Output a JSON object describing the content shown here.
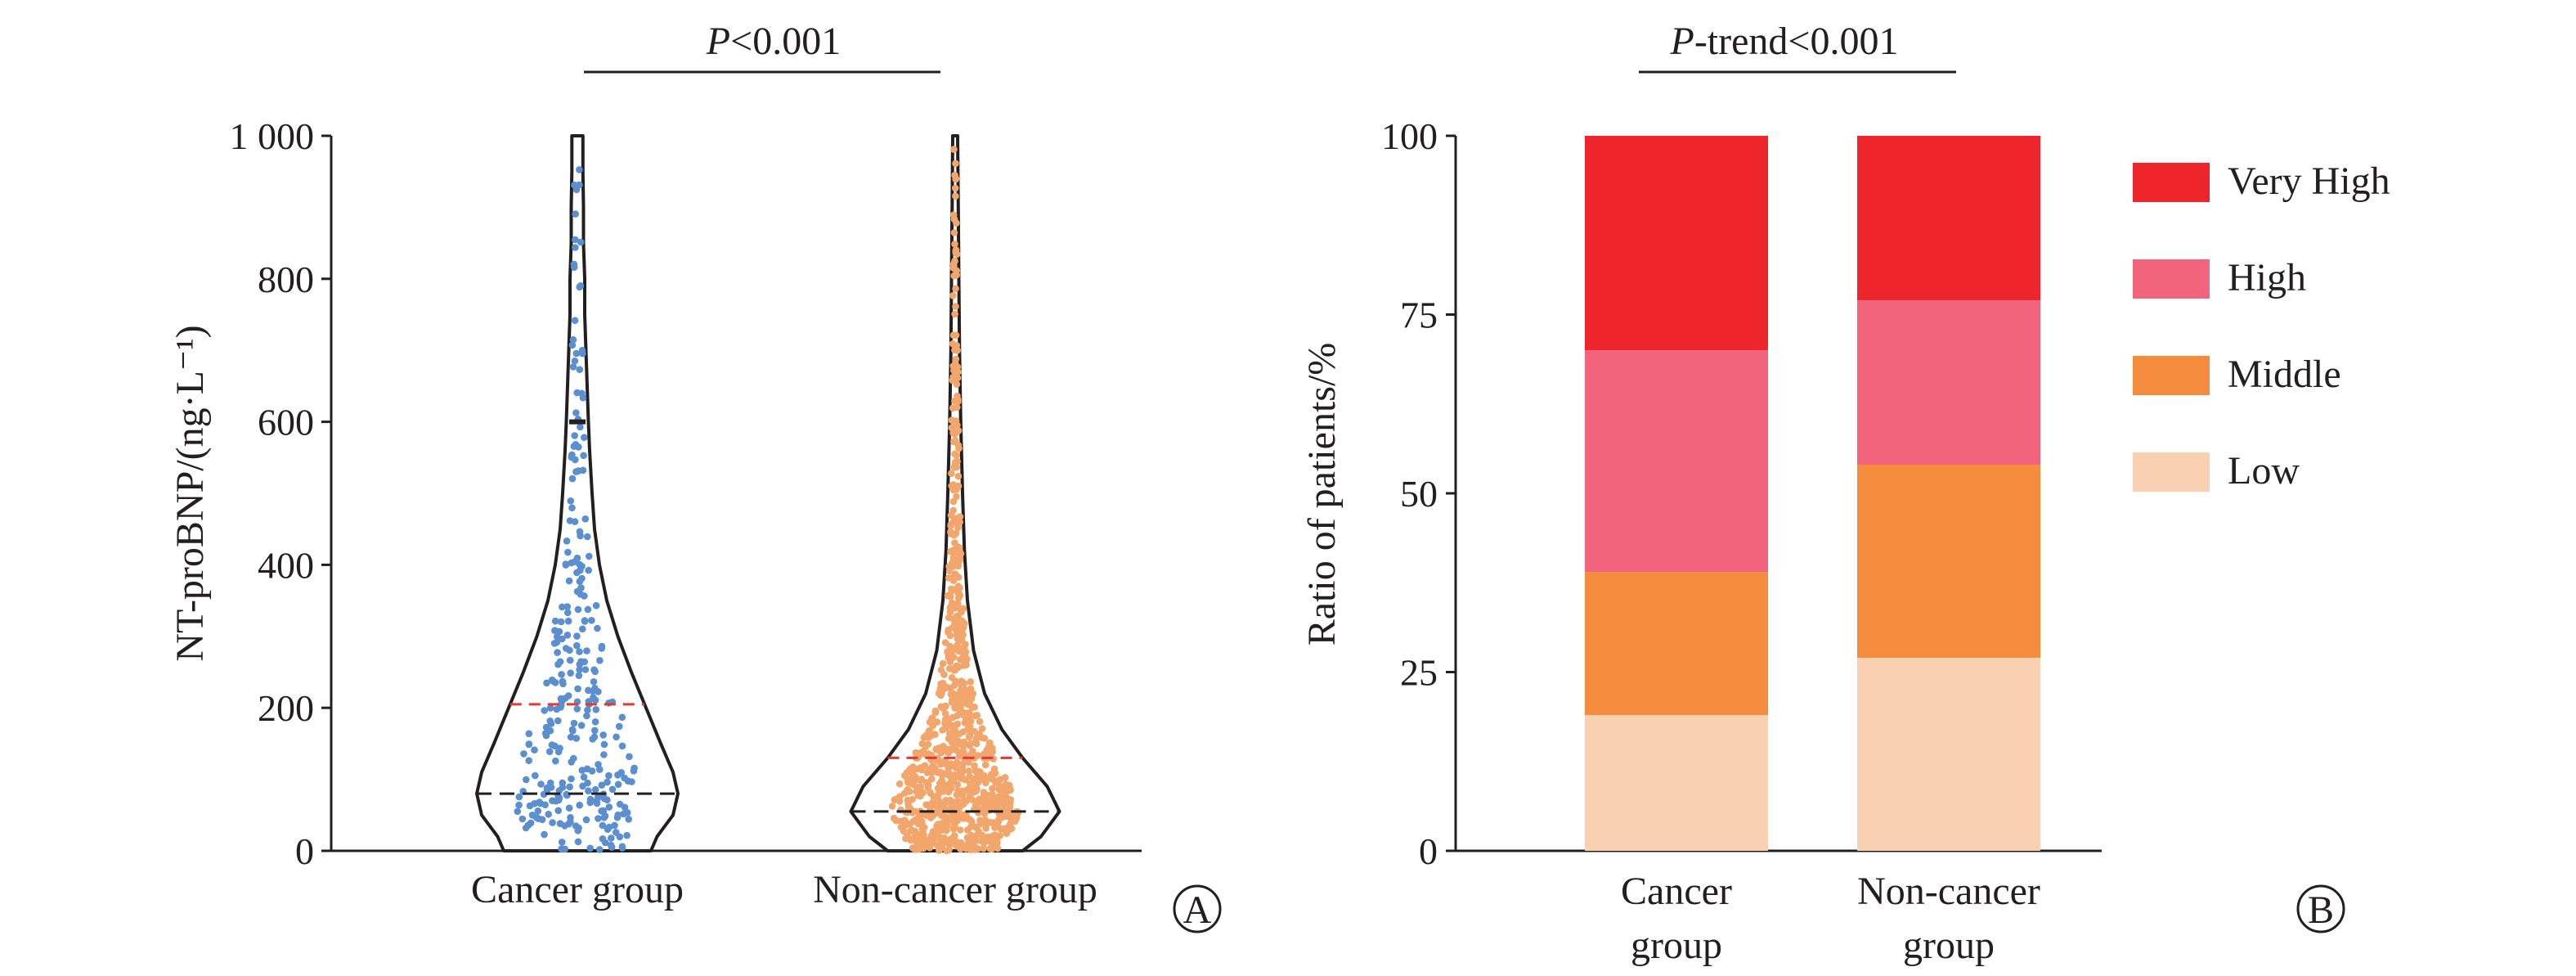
{
  "colors": {
    "axis": "#231f20",
    "cancer_points": "#5b8fcf",
    "noncancer_points": "#f2a66c",
    "red_dash": "#e03a32",
    "black_dash": "#231f20",
    "very_high": "#ee252b",
    "high": "#f1647c",
    "middle": "#f58b3c",
    "low": "#fad1b0"
  },
  "panel_a": {
    "p_text": "P<0.001",
    "panel_label": "A",
    "chart_data": {
      "type": "violin",
      "ylabel": "NT-proBNP/(ng·L⁻¹)",
      "ylim": [
        0,
        1000
      ],
      "yticks": [
        0,
        200,
        400,
        600,
        800,
        1000
      ],
      "ytick_labels": [
        "0",
        "200",
        "400",
        "600",
        "800",
        "1 000"
      ],
      "categories": [
        "Cancer group",
        "Non-cancer group"
      ],
      "series": [
        {
          "category": "Cancer group",
          "median": 80,
          "q3": 205,
          "density": [
            [
              0,
              0.6
            ],
            [
              20,
              0.65
            ],
            [
              50,
              0.78
            ],
            [
              80,
              0.82
            ],
            [
              110,
              0.78
            ],
            [
              150,
              0.68
            ],
            [
              200,
              0.56
            ],
            [
              250,
              0.44
            ],
            [
              300,
              0.33
            ],
            [
              350,
              0.24
            ],
            [
              400,
              0.18
            ],
            [
              450,
              0.14
            ],
            [
              500,
              0.12
            ],
            [
              560,
              0.1
            ],
            [
              600,
              0.09
            ],
            [
              650,
              0.08
            ],
            [
              700,
              0.07
            ],
            [
              750,
              0.06
            ],
            [
              800,
              0.06
            ],
            [
              850,
              0.05
            ],
            [
              900,
              0.05
            ],
            [
              950,
              0.045
            ],
            [
              1000,
              0.045
            ]
          ],
          "point_count": 300,
          "point_extra_value": 600
        },
        {
          "category": "Non-cancer group",
          "median": 55,
          "q3": 130,
          "density": [
            [
              0,
              0.55
            ],
            [
              20,
              0.7
            ],
            [
              55,
              0.85
            ],
            [
              90,
              0.75
            ],
            [
              130,
              0.55
            ],
            [
              170,
              0.38
            ],
            [
              220,
              0.24
            ],
            [
              280,
              0.15
            ],
            [
              350,
              0.1
            ],
            [
              420,
              0.075
            ],
            [
              500,
              0.06
            ],
            [
              600,
              0.045
            ],
            [
              700,
              0.035
            ],
            [
              800,
              0.03
            ],
            [
              900,
              0.025
            ],
            [
              1000,
              0.02
            ]
          ],
          "point_count": 900
        }
      ]
    }
  },
  "panel_b": {
    "p_text": "P-trend<0.001",
    "panel_label": "B",
    "chart_data": {
      "type": "bar",
      "stacked": true,
      "ylabel": "Ratio of patients/%",
      "ylim": [
        0,
        100
      ],
      "yticks": [
        0,
        25,
        50,
        75,
        100
      ],
      "categories": [
        "Cancer group",
        "Non-cancer group"
      ],
      "category_lines": [
        [
          "Cancer",
          "group"
        ],
        [
          "Non-cancer",
          "group"
        ]
      ],
      "series": [
        {
          "name": "Low",
          "values": [
            19,
            27
          ]
        },
        {
          "name": "Middle",
          "values": [
            20,
            27
          ]
        },
        {
          "name": "High",
          "values": [
            31,
            23
          ]
        },
        {
          "name": "Very High",
          "values": [
            30,
            23
          ]
        }
      ],
      "legend": [
        "Very High",
        "High",
        "Middle",
        "Low"
      ],
      "legend_position": "right"
    }
  }
}
